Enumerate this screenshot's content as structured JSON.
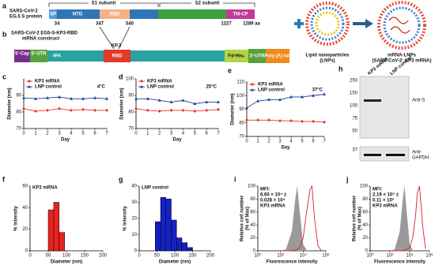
{
  "panels": {
    "a": "a",
    "b": "b",
    "h": "h"
  },
  "protein": {
    "label": [
      "SARS-CoV-2",
      "EG.5 S protein"
    ],
    "s1": "S1 subunit",
    "s2": "S2 subunit",
    "domains": [
      "SP",
      "NTD",
      "RBD",
      "TM-CP"
    ],
    "positions": [
      "34",
      "347",
      "540",
      "1227",
      "1289 aa"
    ]
  },
  "construct": {
    "title": [
      "SARS-CoV-2 EG5-S-KP3-RBD",
      "mRNA construct"
    ],
    "variant": "KP.3",
    "parts": [
      "5'-Cap",
      "5'-UTR",
      "tPA",
      "RBD",
      "Fd-His₆",
      "3'-UTR",
      "Poly (A) tail"
    ]
  },
  "lnp": {
    "label": [
      "Lipid nanoparticles",
      "(LNPs)"
    ],
    "mrna_label": [
      "mRNA-LNPs",
      "(SARS-CoV-2: KP3 mRNA)"
    ]
  },
  "blot": {
    "lanes": [
      "KP3 mRNA",
      "LNP control"
    ],
    "markers": [
      "250",
      "150",
      "100",
      "75",
      "50",
      "37"
    ],
    "antibodies": [
      "Anti-S",
      [
        "Anti-",
        "GAPDH"
      ]
    ]
  },
  "chart_data": [
    {
      "panel": "c",
      "type": "line",
      "annotation": "4°C",
      "xlabel": "Day",
      "ylabel": "Diameter (nm)",
      "x": [
        0,
        1,
        2,
        3,
        4,
        5,
        6,
        7
      ],
      "xlim": [
        0,
        7
      ],
      "xticks": [
        0,
        1,
        2,
        3,
        4,
        5,
        6,
        7
      ],
      "ylim": [
        70,
        100
      ],
      "yticks": [
        70,
        80,
        90
      ],
      "series": [
        {
          "name": "KP3 mRNA",
          "color": "#e8312a",
          "marker": "diamond",
          "values": [
            82,
            80.5,
            81,
            82,
            81,
            81.5,
            81,
            81
          ]
        },
        {
          "name": "LNP control",
          "color": "#1f3e9c",
          "marker": "triangle",
          "values": [
            88.5,
            88,
            88.5,
            89,
            88,
            88,
            88.5,
            88
          ]
        }
      ]
    },
    {
      "panel": "d",
      "type": "line",
      "annotation": "25°C",
      "xlabel": "Day",
      "ylabel": "Diameter (nm)",
      "x": [
        0,
        1,
        2,
        3,
        4,
        5,
        6,
        7
      ],
      "xlim": [
        0,
        7
      ],
      "xticks": [
        0,
        1,
        2,
        3,
        4,
        5,
        6,
        7
      ],
      "ylim": [
        70,
        100
      ],
      "yticks": [
        70,
        80,
        90,
        100
      ],
      "series": [
        {
          "name": "KP3 mRNA",
          "color": "#e8312a",
          "marker": "diamond",
          "values": [
            82,
            81,
            80.5,
            81,
            81,
            80.5,
            81,
            81.5
          ]
        },
        {
          "name": "LNP control",
          "color": "#1f3e9c",
          "marker": "triangle",
          "values": [
            88,
            88,
            87,
            86,
            87,
            85,
            86,
            86
          ]
        }
      ]
    },
    {
      "panel": "e",
      "type": "line",
      "annotation": "37°C",
      "xlabel": "Day",
      "ylabel": "Diameter (nm)",
      "x": [
        0,
        1,
        2,
        3,
        4,
        5,
        6,
        7
      ],
      "xlim": [
        0,
        7
      ],
      "xticks": [
        0,
        1,
        2,
        3,
        4,
        5,
        6,
        7
      ],
      "ylim": [
        70,
        110
      ],
      "yticks": [
        70,
        80,
        90,
        100,
        110
      ],
      "series": [
        {
          "name": "KP3 mRNA",
          "color": "#e8312a",
          "marker": "diamond",
          "values": [
            82,
            82,
            82,
            81.5,
            81.5,
            81,
            81,
            80.5
          ]
        },
        {
          "name": "LNP control",
          "color": "#1f3e9c",
          "marker": "triangle",
          "values": [
            91,
            96,
            97,
            97,
            99,
            99,
            100,
            101
          ]
        }
      ]
    },
    {
      "panel": "f",
      "type": "histogram",
      "title": "KP3 mRNA",
      "xlabel": "Diameter (nm)",
      "ylabel": "% Intensity",
      "color": "#e8231f",
      "bins": [
        50,
        65,
        80,
        95
      ],
      "values": [
        38,
        45,
        17
      ],
      "xlim": [
        0,
        200
      ],
      "xticks": [
        0,
        50,
        100,
        150,
        200
      ],
      "ylim": [
        0,
        60
      ],
      "yticks": [
        0,
        20,
        40,
        60
      ]
    },
    {
      "panel": "g",
      "type": "histogram",
      "title": "LNP control",
      "xlabel": "Diameter (nm)",
      "ylabel": "% Intensity",
      "color": "#1421c4",
      "bins": [
        45,
        60,
        75,
        90,
        105,
        120,
        135,
        150
      ],
      "values": [
        18,
        33,
        32,
        19,
        8,
        5,
        2
      ],
      "xlim": [
        0,
        200
      ],
      "xticks": [
        0,
        50,
        100,
        150,
        200
      ],
      "ylim": [
        0,
        40
      ],
      "yticks": [
        0,
        10,
        20,
        30,
        40
      ]
    },
    {
      "panel": "i",
      "type": "line",
      "xlog": true,
      "annotation": [
        "MFI:",
        "6.60 × 10⁴ ±",
        "0.028 × 10⁴",
        "KP3 mRNA"
      ],
      "annotation_color": "#d0202a",
      "xlabel": "Fluorescence intensity",
      "ylabel": [
        "Relative cell number",
        "(% of Max)"
      ],
      "x": [
        100,
        300,
        1000,
        2000,
        3000,
        5000,
        10000,
        20000,
        40000,
        60000,
        100000,
        200000,
        400000
      ],
      "xlim": [
        1,
        1000000
      ],
      "xticks": [
        {
          "value": 1,
          "label": "10⁰"
        },
        {
          "value": 100,
          "label": "10²"
        },
        {
          "value": 10000,
          "label": "10⁴"
        },
        {
          "value": 1000000,
          "label": "10⁶"
        }
      ],
      "ylim": [
        0,
        100
      ],
      "yticks": [
        0,
        20,
        40,
        60,
        80,
        100
      ],
      "series": [
        {
          "color": "#9a9a9a",
          "fill": true,
          "values": [
            0,
            2,
            30,
            80,
            100,
            60,
            10,
            1,
            0,
            0,
            0,
            0,
            0
          ]
        },
        {
          "color": "#d9202a",
          "values": [
            0,
            0,
            0,
            1,
            2,
            5,
            20,
            60,
            95,
            100,
            50,
            8,
            0
          ]
        }
      ]
    },
    {
      "panel": "j",
      "type": "line",
      "xlog": true,
      "annotation": [
        "MFI:",
        "2.19 × 10⁵ ±",
        "0.11 × 10⁵",
        "KP3 mRNA"
      ],
      "annotation_color": "#d0202a",
      "xlabel": "Fluorescence intensity",
      "ylabel": [
        "Relative cell number",
        "(% of Max)"
      ],
      "x": [
        100,
        300,
        1000,
        2000,
        3000,
        5000,
        10000,
        20000,
        40000,
        60000,
        100000,
        200000,
        400000
      ],
      "xlim": [
        1,
        1000000
      ],
      "xticks": [
        {
          "value": 1,
          "label": "10⁰"
        },
        {
          "value": 100,
          "label": "10²"
        },
        {
          "value": 10000,
          "label": "10⁴"
        },
        {
          "value": 1000000,
          "label": "10⁶"
        }
      ],
      "ylim": [
        0,
        100
      ],
      "yticks": [
        0,
        20,
        40,
        60,
        80,
        100
      ],
      "series": [
        {
          "color": "#9a9a9a",
          "fill": true,
          "values": [
            0,
            2,
            30,
            80,
            100,
            60,
            10,
            1,
            0,
            0,
            0,
            0,
            0
          ]
        },
        {
          "color": "#d9202a",
          "values": [
            0,
            0,
            0,
            0,
            1,
            2,
            5,
            20,
            55,
            90,
            100,
            40,
            3
          ]
        }
      ]
    }
  ]
}
